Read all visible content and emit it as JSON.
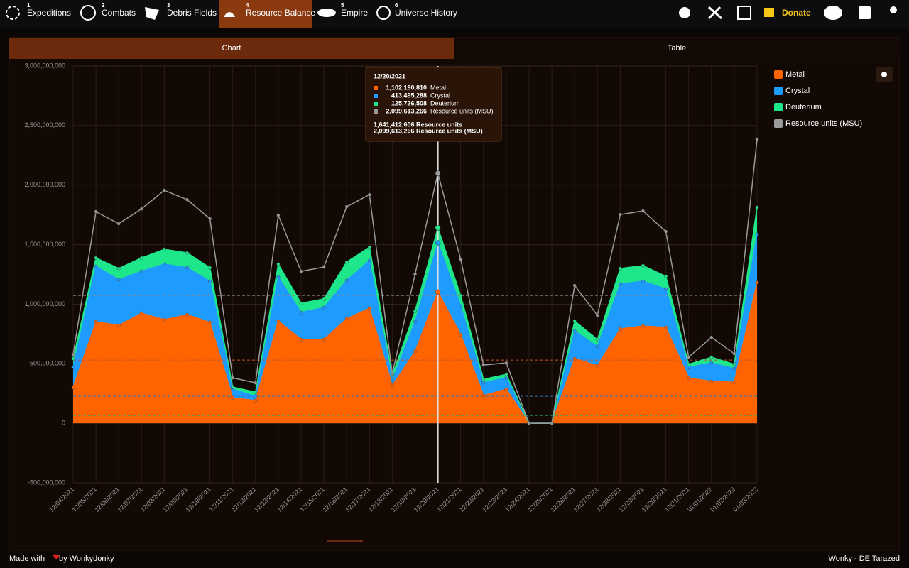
{
  "nav": {
    "items": [
      {
        "num": "1",
        "label": "Expeditions"
      },
      {
        "num": "2",
        "label": "Combats"
      },
      {
        "num": "3",
        "label": "Debris Fields"
      },
      {
        "num": "4",
        "label": "Resource Balance"
      },
      {
        "num": "5",
        "label": "Empire"
      },
      {
        "num": "6",
        "label": "Universe History"
      }
    ],
    "donate": "Donate"
  },
  "tabs": [
    "Chart",
    "Table"
  ],
  "footer": {
    "left_start": "Made with",
    "left_end": "by Wonkydonky",
    "right": "Wonky - DE Tarazed"
  },
  "chart_data": {
    "type": "stacked-area",
    "categories": [
      "12/04/2021",
      "12/05/2021",
      "12/06/2021",
      "12/07/2021",
      "12/08/2021",
      "12/09/2021",
      "12/10/2021",
      "12/11/2021",
      "12/12/2021",
      "12/13/2021",
      "12/14/2021",
      "12/15/2021",
      "12/16/2021",
      "12/17/2021",
      "12/18/2021",
      "12/19/2021",
      "12/20/2021",
      "12/21/2021",
      "12/22/2021",
      "12/23/2021",
      "12/24/2021",
      "12/25/2021",
      "12/26/2021",
      "12/27/2021",
      "12/28/2021",
      "12/29/2021",
      "12/30/2021",
      "12/31/2021",
      "01/01/2022",
      "01/02/2022",
      "01/03/2022"
    ],
    "series": [
      {
        "name": "Metal",
        "color": "#ff6400",
        "stack": true,
        "values": [
          300000000,
          853000000,
          823000000,
          924000000,
          870000000,
          912000000,
          847000000,
          215000000,
          191000000,
          859000000,
          704000000,
          704000000,
          877000000,
          966000000,
          316000000,
          602000000,
          1102190810,
          745000000,
          233000000,
          286000000,
          0,
          0,
          543000000,
          483000000,
          793000000,
          817000000,
          805000000,
          382000000,
          352000000,
          346000000,
          1181000000
        ]
      },
      {
        "name": "Crystal",
        "color": "#1e9bff",
        "stack": true,
        "values": [
          171000000,
          465000000,
          382000000,
          352000000,
          466000000,
          394000000,
          346000000,
          71000000,
          36000000,
          369000000,
          226000000,
          268000000,
          322000000,
          400000000,
          42000000,
          251000000,
          413495288,
          239000000,
          107000000,
          96000000,
          0,
          0,
          232000000,
          161000000,
          376000000,
          376000000,
          322000000,
          89000000,
          155000000,
          113000000,
          405000000
        ]
      },
      {
        "name": "Deuterium",
        "color": "#1ee68a",
        "stack": true,
        "values": [
          72000000,
          71000000,
          95000000,
          113000000,
          125000000,
          125000000,
          113000000,
          18000000,
          35000000,
          108000000,
          78000000,
          72000000,
          155000000,
          113000000,
          47000000,
          89000000,
          125726508,
          89000000,
          30000000,
          29000000,
          0,
          0,
          84000000,
          60000000,
          131000000,
          131000000,
          107000000,
          24000000,
          48000000,
          36000000,
          227000000
        ]
      },
      {
        "name": "Resource units (MSU)",
        "color": "#9a9a9a",
        "stack": false,
        "values": [
          578000000,
          1777000000,
          1676000000,
          1801000000,
          1956000000,
          1878000000,
          1717000000,
          382000000,
          340000000,
          1747000000,
          1276000000,
          1312000000,
          1819000000,
          1920000000,
          417000000,
          1252000000,
          2099613266,
          1377000000,
          489000000,
          507000000,
          0,
          0,
          1157000000,
          906000000,
          1753000000,
          1783000000,
          1610000000,
          555000000,
          722000000,
          584000000,
          2385000000
        ]
      }
    ],
    "ylim": [
      -500000000,
      3000000000
    ],
    "yticks": [
      {
        "value": -500000000,
        "label": "-500,000,000"
      },
      0,
      {
        "value": 500000000,
        "label": "500,000,000"
      },
      {
        "value": 1000000000,
        "label": "1,000,000,000"
      },
      {
        "value": 1500000000,
        "label": "1,500,000,000"
      },
      {
        "value": 2000000000,
        "label": "2,000,000,000"
      },
      {
        "value": 2500000000,
        "label": "2,500,000,000"
      },
      {
        "value": 3000000000,
        "label": "3,000,000,000"
      }
    ],
    "grid": true,
    "reference_lines": [
      {
        "value": 1073000000,
        "color": "#8a8a8a"
      },
      {
        "value": 531000000,
        "color": "#c0542a"
      },
      {
        "value": 227000000,
        "color": "#2a78b8"
      },
      {
        "value": 66000000,
        "color": "#2aa86a"
      }
    ],
    "tooltip": {
      "date": "12/20/2021",
      "index": 16,
      "rows": [
        {
          "value": "1,102,190,810",
          "name": "Metal"
        },
        {
          "value": "413,495,288",
          "name": "Crystal"
        },
        {
          "value": "125,726,508",
          "name": "Deuterium"
        },
        {
          "value": "2,099,613,266",
          "name": "Resource units (MSU)"
        }
      ],
      "totals": [
        "1,641,412,606 Resource units",
        "2,099,613,266 Resource units (MSU)"
      ]
    }
  }
}
